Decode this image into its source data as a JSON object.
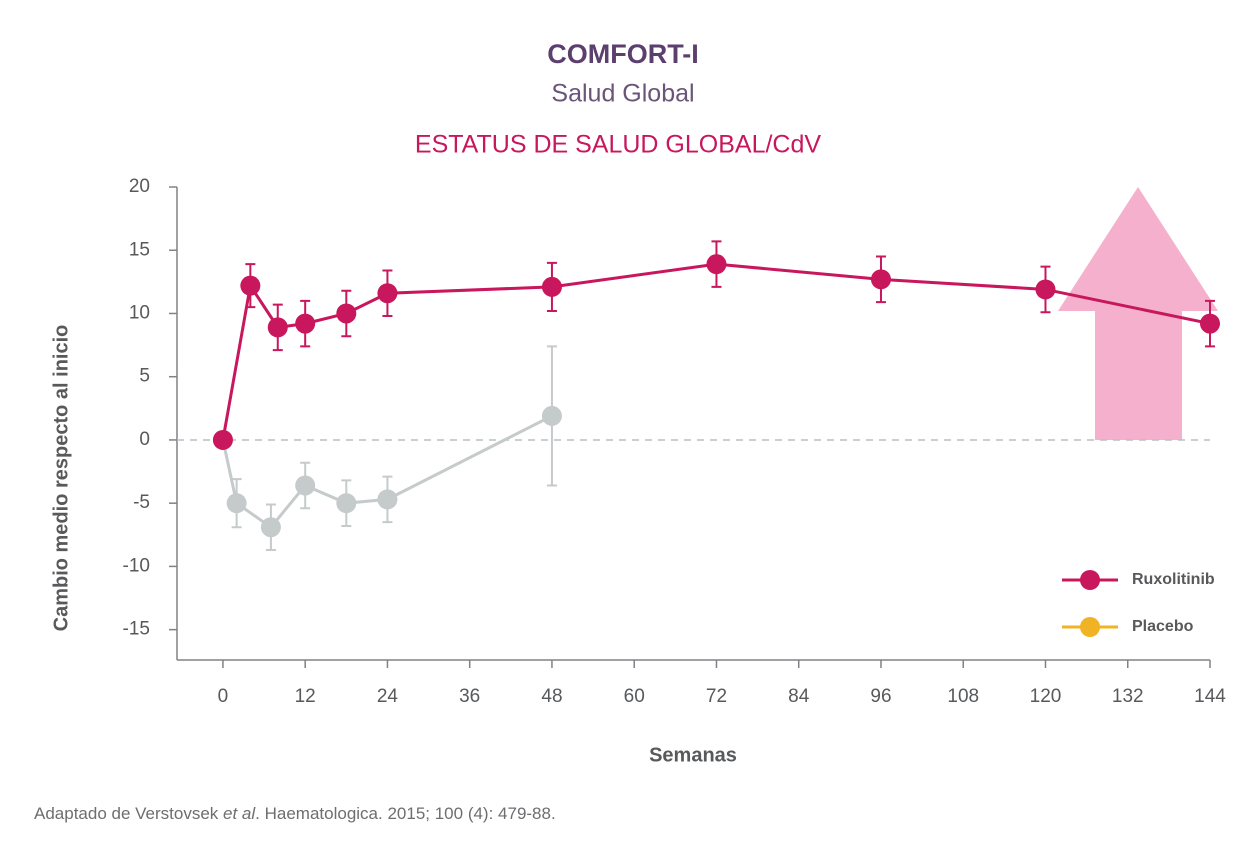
{
  "chart_data": {
    "type": "line",
    "title": "COMFORT-I",
    "subtitle": "Salud Global",
    "chart_title": "ESTATUS DE SALUD GLOBAL/CdV",
    "xlabel": "Semanas",
    "ylabel": "Cambio medio respecto al inicio",
    "source": [
      "Adaptado de Verstovsek ",
      "et al",
      ". Haematologica. 2015; 100 (4): 479-88."
    ],
    "xlim": [
      -6.7,
      144
    ],
    "ylim": [
      -17.4,
      20
    ],
    "xticks": [
      0,
      12,
      24,
      36,
      48,
      60,
      72,
      84,
      96,
      108,
      120,
      132,
      144
    ],
    "yticks": [
      20,
      15,
      10,
      5,
      0,
      -5,
      -10,
      -15
    ],
    "zero_line": true,
    "legend": "lower right",
    "series": [
      {
        "name": "Ruxolitinib",
        "color": "#c8175d",
        "legend_color": "#c8175d",
        "x": [
          0,
          4,
          8,
          12,
          18,
          24,
          48,
          72,
          96,
          120,
          144
        ],
        "values": [
          0,
          12.2,
          8.9,
          9.2,
          10.0,
          11.6,
          12.1,
          13.9,
          12.7,
          11.9,
          9.2
        ],
        "errors": [
          null,
          1.7,
          1.8,
          1.8,
          1.8,
          1.8,
          1.9,
          1.8,
          1.8,
          1.8,
          1.8
        ]
      },
      {
        "name": "Placebo",
        "color": "#c5cacb",
        "legend_color": "#f0b323",
        "x": [
          0,
          2,
          7,
          12,
          18,
          24,
          48
        ],
        "values": [
          0,
          -5.0,
          -6.9,
          -3.6,
          -5.0,
          -4.7,
          1.9
        ],
        "errors": [
          null,
          1.9,
          1.8,
          1.8,
          1.8,
          1.8,
          5.5
        ]
      }
    ]
  }
}
